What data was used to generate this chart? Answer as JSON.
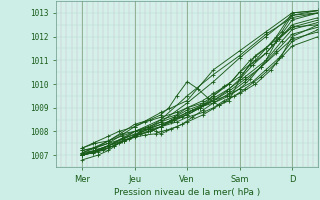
{
  "bg_color": "#cceee6",
  "plot_bg_color": "#d4f0e8",
  "grid_color_v": "#c8b8c8",
  "grid_color_h": "#b8d8d0",
  "line_color": "#1a5c1a",
  "xlabel": "Pression niveau de la mer( hPa )",
  "xlabel_color": "#1a5c1a",
  "ylabel_color": "#1a5c1a",
  "tick_color": "#1a5c1a",
  "yticks": [
    1007,
    1008,
    1009,
    1010,
    1011,
    1012,
    1013
  ],
  "ylim": [
    1006.5,
    1013.5
  ],
  "xlim": [
    0.0,
    5.0
  ],
  "xtick_labels": [
    "Mer",
    "Jeu",
    "Ven",
    "Sam",
    "D"
  ],
  "xtick_positions": [
    0.5,
    1.5,
    2.5,
    3.5,
    4.5
  ],
  "day_lines": [
    0.5,
    1.5,
    2.5,
    3.5,
    4.5
  ],
  "lines": [
    {
      "x": [
        0.5,
        1.0,
        1.5,
        2.0,
        2.5,
        3.0,
        3.5,
        4.0,
        4.5,
        5.0
      ],
      "y": [
        1007.0,
        1007.3,
        1007.8,
        1008.4,
        1009.2,
        1010.1,
        1011.1,
        1012.0,
        1012.9,
        1013.1
      ]
    },
    {
      "x": [
        0.5,
        1.0,
        1.5,
        2.0,
        2.5,
        3.0,
        3.5,
        4.0,
        4.5,
        5.0
      ],
      "y": [
        1007.0,
        1007.4,
        1008.0,
        1008.5,
        1009.5,
        1010.4,
        1011.2,
        1012.1,
        1012.8,
        1013.0
      ]
    },
    {
      "x": [
        0.5,
        1.0,
        1.5,
        2.0,
        2.5,
        3.0,
        3.5,
        4.0,
        4.5,
        5.0
      ],
      "y": [
        1007.1,
        1007.5,
        1008.2,
        1008.8,
        1009.3,
        1010.6,
        1011.4,
        1012.2,
        1013.0,
        1013.1
      ]
    },
    {
      "x": [
        0.5,
        1.0,
        1.5,
        1.8,
        2.0,
        2.15,
        2.3,
        2.5,
        2.7,
        2.9,
        3.1,
        3.3,
        3.5,
        3.8,
        4.1,
        4.5,
        5.0
      ],
      "y": [
        1007.1,
        1007.6,
        1008.3,
        1008.5,
        1008.7,
        1009.0,
        1009.5,
        1010.1,
        1009.8,
        1009.4,
        1009.1,
        1009.3,
        1010.2,
        1011.2,
        1011.7,
        1012.4,
        1012.5
      ]
    },
    {
      "x": [
        0.5,
        0.75,
        1.0,
        1.25,
        1.5,
        1.75,
        2.0,
        2.25,
        2.5,
        2.75,
        3.0,
        3.25,
        3.5,
        3.75,
        4.0,
        4.25,
        4.5,
        5.0
      ],
      "y": [
        1007.2,
        1007.3,
        1007.6,
        1007.9,
        1008.0,
        1008.2,
        1008.4,
        1008.6,
        1008.9,
        1009.1,
        1009.3,
        1009.5,
        1009.8,
        1010.1,
        1010.6,
        1011.1,
        1011.8,
        1012.3
      ]
    },
    {
      "x": [
        0.5,
        0.7,
        0.9,
        1.1,
        1.3,
        1.5,
        1.8,
        2.0,
        2.2,
        2.5,
        2.7,
        3.0,
        3.3,
        3.5,
        3.7,
        4.0,
        4.2,
        4.5,
        5.0
      ],
      "y": [
        1007.0,
        1007.1,
        1007.2,
        1007.4,
        1007.6,
        1007.8,
        1008.0,
        1008.2,
        1008.5,
        1008.8,
        1009.0,
        1009.2,
        1009.5,
        1009.8,
        1010.2,
        1011.0,
        1011.8,
        1012.7,
        1013.0
      ]
    },
    {
      "x": [
        0.5,
        0.7,
        1.0,
        1.2,
        1.5,
        1.7,
        2.0,
        2.3,
        2.5,
        2.8,
        3.0,
        3.3,
        3.5,
        3.7,
        4.0,
        4.2,
        4.5,
        5.0
      ],
      "y": [
        1007.3,
        1007.5,
        1007.8,
        1008.0,
        1008.2,
        1008.4,
        1008.6,
        1008.8,
        1009.0,
        1009.2,
        1009.5,
        1010.0,
        1010.5,
        1011.0,
        1011.5,
        1012.0,
        1013.0,
        1013.1
      ]
    },
    {
      "x": [
        0.5,
        0.8,
        1.0,
        1.3,
        1.5,
        1.8,
        2.0,
        2.3,
        2.5,
        2.8,
        3.0,
        3.3,
        3.5,
        3.8,
        4.0,
        4.3,
        4.5,
        5.0
      ],
      "y": [
        1007.0,
        1007.15,
        1007.4,
        1007.7,
        1008.0,
        1008.2,
        1008.5,
        1008.7,
        1009.0,
        1009.3,
        1009.6,
        1010.0,
        1010.5,
        1011.0,
        1011.5,
        1012.2,
        1012.9,
        1013.0
      ]
    },
    {
      "x": [
        0.5,
        0.8,
        1.0,
        1.2,
        1.4,
        1.6,
        1.8,
        2.0,
        2.3,
        2.5,
        2.8,
        3.0,
        3.2,
        3.5,
        3.8,
        4.1,
        4.3,
        4.5,
        5.0
      ],
      "y": [
        1006.8,
        1007.0,
        1007.2,
        1007.5,
        1007.7,
        1007.9,
        1008.0,
        1008.2,
        1008.4,
        1008.6,
        1008.8,
        1009.0,
        1009.3,
        1009.6,
        1010.0,
        1010.6,
        1011.2,
        1012.0,
        1012.5
      ]
    },
    {
      "x": [
        0.5,
        0.75,
        1.0,
        1.25,
        1.5,
        1.75,
        2.0,
        2.25,
        2.5,
        2.75,
        3.0,
        3.25,
        3.5,
        3.75,
        4.0,
        4.25,
        4.5,
        5.0
      ],
      "y": [
        1007.1,
        1007.2,
        1007.4,
        1007.6,
        1007.8,
        1008.0,
        1008.2,
        1008.5,
        1008.8,
        1009.0,
        1009.3,
        1009.7,
        1010.2,
        1010.8,
        1011.3,
        1011.9,
        1012.5,
        1012.8
      ]
    },
    {
      "x": [
        0.5,
        0.7,
        0.9,
        1.1,
        1.3,
        1.5,
        1.6,
        1.7,
        1.8,
        1.9,
        2.0,
        2.2,
        2.4,
        2.6,
        2.8,
        3.0,
        3.3,
        3.6,
        3.9,
        4.2,
        4.5,
        5.0
      ],
      "y": [
        1007.0,
        1007.1,
        1007.25,
        1007.4,
        1007.6,
        1007.8,
        1008.0,
        1008.1,
        1008.1,
        1008.0,
        1007.9,
        1008.1,
        1008.3,
        1008.6,
        1008.9,
        1009.2,
        1009.6,
        1010.1,
        1010.7,
        1011.4,
        1012.1,
        1012.4
      ]
    },
    {
      "x": [
        0.5,
        0.75,
        1.0,
        1.25,
        1.5,
        1.75,
        2.0,
        2.25,
        2.5,
        2.75,
        3.0,
        3.3,
        3.6,
        4.0,
        4.3,
        4.5,
        5.0
      ],
      "y": [
        1007.05,
        1007.2,
        1007.4,
        1007.7,
        1007.85,
        1008.1,
        1008.3,
        1008.5,
        1008.7,
        1009.0,
        1009.4,
        1009.8,
        1010.3,
        1011.0,
        1011.8,
        1012.3,
        1012.6
      ]
    },
    {
      "x": [
        0.5,
        0.7,
        1.0,
        1.3,
        1.5,
        1.8,
        2.0,
        2.2,
        2.4,
        2.6,
        2.8,
        3.0,
        3.2,
        3.5,
        3.7,
        4.0,
        4.2,
        4.5,
        5.0
      ],
      "y": [
        1007.2,
        1007.3,
        1007.5,
        1007.7,
        1007.9,
        1008.1,
        1008.2,
        1008.4,
        1008.6,
        1008.9,
        1009.1,
        1009.5,
        1009.9,
        1010.3,
        1010.8,
        1011.3,
        1011.8,
        1012.4,
        1012.7
      ]
    },
    {
      "x": [
        0.5,
        0.8,
        1.0,
        1.3,
        1.5,
        1.7,
        1.9,
        2.0,
        2.1,
        2.3,
        2.5,
        2.8,
        3.1,
        3.4,
        3.6,
        3.9,
        4.2,
        4.5,
        5.0
      ],
      "y": [
        1007.05,
        1007.2,
        1007.4,
        1007.6,
        1007.75,
        1007.85,
        1007.9,
        1008.0,
        1008.05,
        1008.2,
        1008.4,
        1008.7,
        1009.1,
        1009.5,
        1009.8,
        1010.3,
        1010.9,
        1011.6,
        1012.0
      ]
    },
    {
      "x": [
        0.5,
        0.75,
        1.0,
        1.25,
        1.5,
        1.75,
        2.0,
        2.25,
        2.5,
        2.75,
        3.0,
        3.3,
        3.6,
        3.9,
        4.2,
        4.5,
        5.0
      ],
      "y": [
        1007.3,
        1007.5,
        1007.6,
        1007.8,
        1008.0,
        1008.1,
        1008.3,
        1008.5,
        1008.7,
        1009.0,
        1009.3,
        1009.7,
        1010.2,
        1010.7,
        1011.3,
        1011.9,
        1012.2
      ]
    }
  ]
}
